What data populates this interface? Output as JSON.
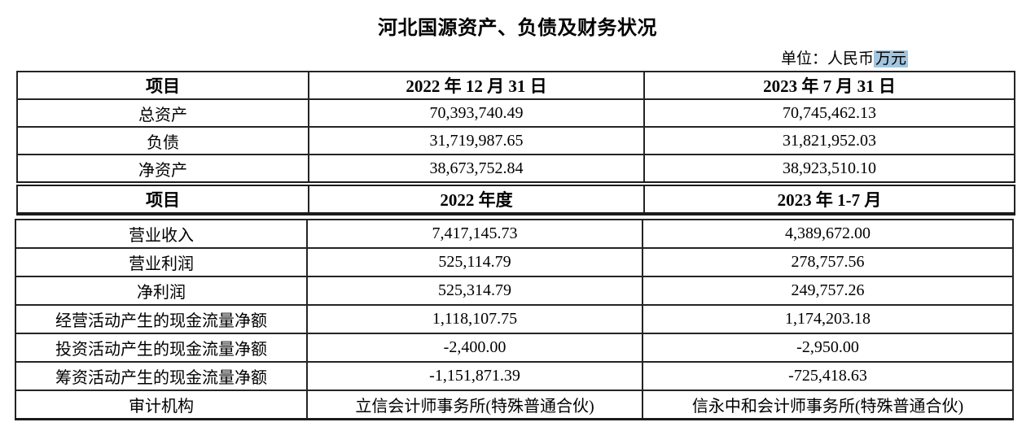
{
  "title": "河北国源资产、负债及财务状况",
  "unit_note": {
    "prefix": "单位：人民币",
    "highlight": "万元"
  },
  "colors": {
    "selection_highlight": "#a3c6e0",
    "border": "#1b1b1b",
    "text": "#000000",
    "background": "#ffffff"
  },
  "table1": {
    "header": [
      "项目",
      "2022 年 12 月 31 日",
      "2023 年 7 月 31 日"
    ],
    "rows": [
      [
        "总资产",
        "70,393,740.49",
        "70,745,462.13"
      ],
      [
        "负债",
        "31,719,987.65",
        "31,821,952.03"
      ],
      [
        "净资产",
        "38,673,752.84",
        "38,923,510.10"
      ]
    ],
    "subheader": [
      "项目",
      "2022 年度",
      "2023 年 1-7 月"
    ]
  },
  "table2": {
    "rows": [
      [
        "营业收入",
        "7,417,145.73",
        "4,389,672.00"
      ],
      [
        "营业利润",
        "525,114.79",
        "278,757.56"
      ],
      [
        "净利润",
        "525,314.79",
        "249,757.26"
      ],
      [
        "经营活动产生的现金流量净额",
        "1,118,107.75",
        "1,174,203.18"
      ],
      [
        "投资活动产生的现金流量净额",
        "-2,400.00",
        "-2,950.00"
      ],
      [
        "筹资活动产生的现金流量净额",
        "-1,151,871.39",
        "-725,418.63"
      ],
      [
        "审计机构",
        "立信会计师事务所(特殊普通合伙)",
        "信永中和会计师事务所(特殊普通合伙)"
      ]
    ]
  }
}
